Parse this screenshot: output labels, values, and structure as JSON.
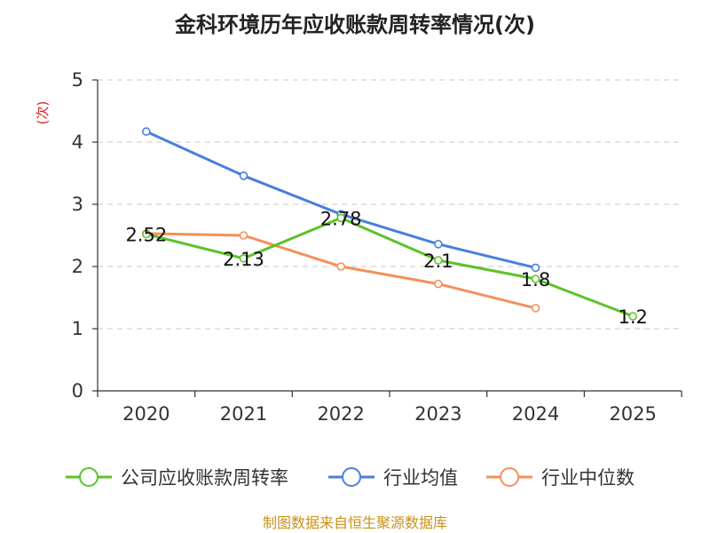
{
  "chart_data": {
    "type": "line",
    "title": "金科环境历年应收账款周转率情况(次)",
    "ylabel": "(次)",
    "xlabel": "",
    "categories": [
      "2020",
      "2021",
      "2022",
      "2023",
      "2024",
      "2025"
    ],
    "ylim": [
      0,
      5
    ],
    "yticks": [
      0,
      1,
      2,
      3,
      4,
      5
    ],
    "grid": true,
    "legend_position": "bottom",
    "series": [
      {
        "name": "公司应收账款周转率",
        "color": "#5cc22a",
        "values": [
          2.52,
          2.13,
          2.78,
          2.1,
          1.8,
          1.2
        ],
        "labels": [
          "2.52",
          "2.13",
          "2.78",
          "2.1",
          "1.8",
          "1.2"
        ]
      },
      {
        "name": "行业均值",
        "color": "#4a7fdc",
        "values": [
          4.17,
          3.46,
          2.84,
          2.36,
          1.98,
          null
        ]
      },
      {
        "name": "行业中位数",
        "color": "#f5905a",
        "values": [
          2.53,
          2.5,
          2.0,
          1.72,
          1.33,
          null
        ]
      }
    ],
    "source": "制图数据来自恒生聚源数据库"
  }
}
